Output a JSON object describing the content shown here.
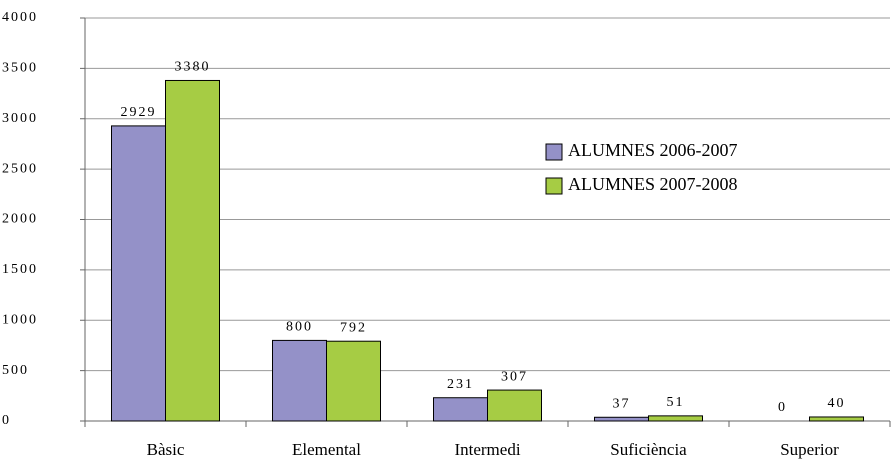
{
  "chart_data": {
    "type": "bar",
    "categories": [
      "Bàsic",
      "Elemental",
      "Intermedi",
      "Suficiència",
      "Superior"
    ],
    "series": [
      {
        "name": "ALUMNES 2006-2007",
        "color": "#9491c8",
        "values": [
          2929,
          800,
          231,
          37,
          0
        ]
      },
      {
        "name": "ALUMNES 2007-2008",
        "color": "#a6cc44",
        "values": [
          3380,
          792,
          307,
          51,
          40
        ]
      }
    ],
    "ylim": [
      0,
      4000
    ],
    "yticks": [
      0,
      500,
      1000,
      1500,
      2000,
      2500,
      3000,
      3500,
      4000
    ],
    "grid": true,
    "legend": "right"
  }
}
